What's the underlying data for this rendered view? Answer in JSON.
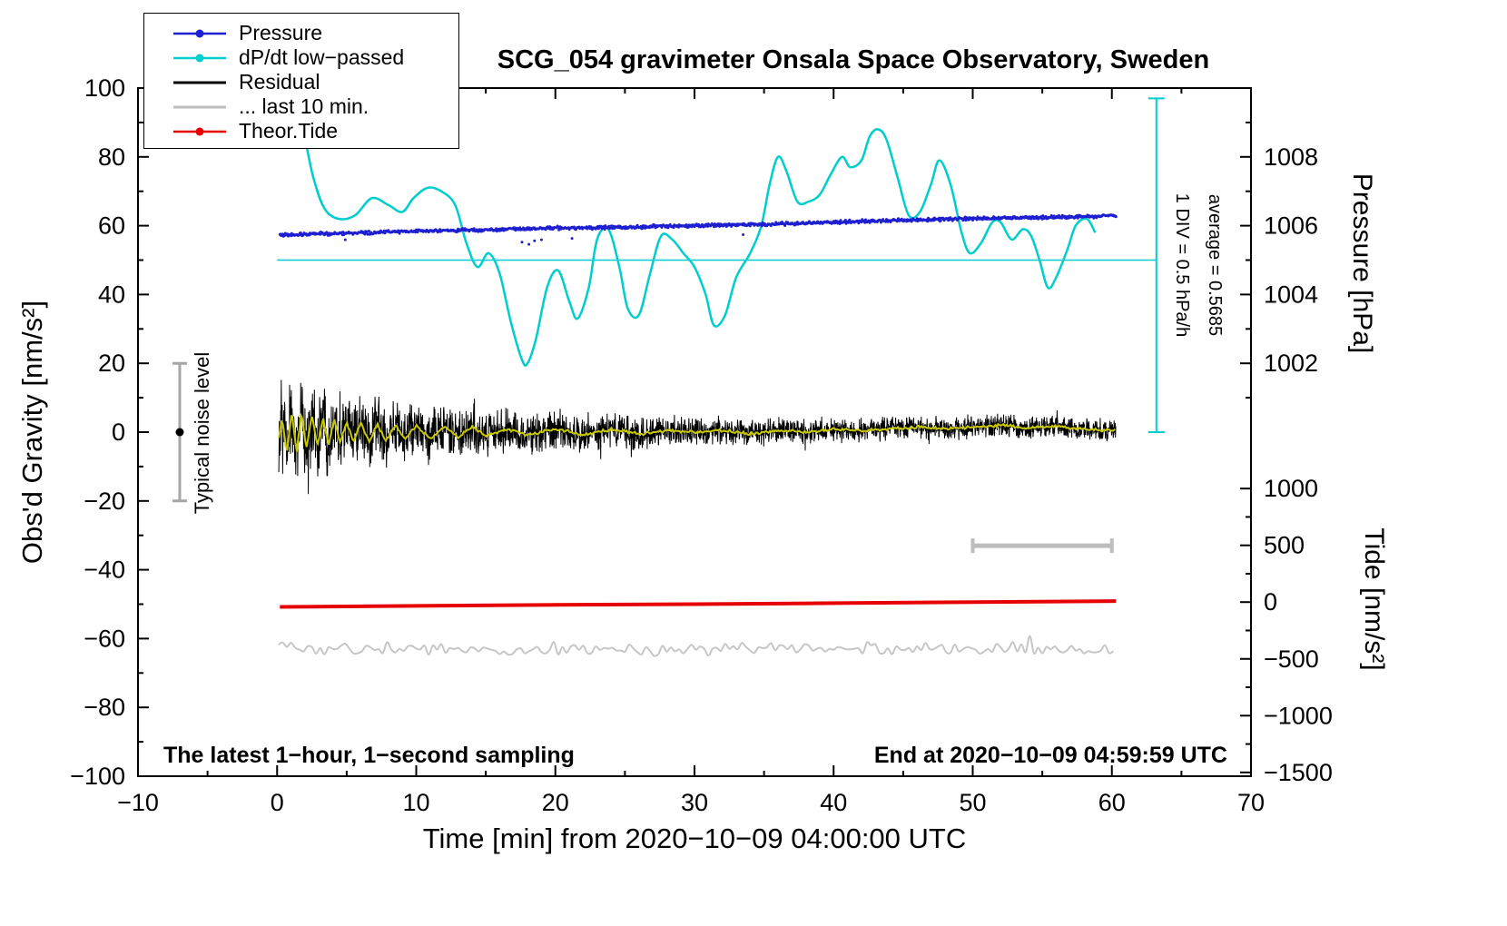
{
  "chart_data": {
    "type": "line",
    "title": "SCG_054 gravimeter Onsala Space Observatory, Sweden",
    "xlabel": "Time [min] from 2020−10−09 04:00:00 UTC",
    "ylabel_left": "Obs'd Gravity [nm/s²]",
    "ylabel_right_pressure": "Pressure [hPa]",
    "ylabel_right_tide": "Tide [nm/s²]",
    "xlim": [
      -10,
      70
    ],
    "ylim_left": [
      -100,
      100
    ],
    "grid": false,
    "legend_position": "top-left",
    "x_major": [
      -10,
      0,
      10,
      20,
      30,
      40,
      50,
      60,
      70
    ],
    "x_major_labels": [
      "−10",
      "0",
      "10",
      "20",
      "30",
      "40",
      "50",
      "60",
      "70"
    ],
    "x_minor": [
      -5,
      5,
      15,
      25,
      35,
      45,
      55,
      65
    ],
    "y_major": [
      -100,
      -80,
      -60,
      -40,
      -20,
      0,
      20,
      40,
      60,
      80,
      100
    ],
    "y_major_labels": [
      "−100",
      "−80",
      "−60",
      "−40",
      "−20",
      "0",
      "20",
      "40",
      "60",
      "80",
      "100"
    ],
    "y_minor": [
      -90,
      -70,
      -50,
      -30,
      -10,
      10,
      30,
      50,
      70,
      90
    ],
    "pressure_axis": {
      "g_at_1006": 60,
      "g_per_hpa": 10,
      "major": [
        1002,
        1004,
        1006,
        1008
      ],
      "major_labels": [
        "1002",
        "1004",
        "1006",
        "1008"
      ],
      "minor": [
        1001,
        1003,
        1005,
        1007,
        1009
      ]
    },
    "tide_axis": {
      "g_at_0": -49.4,
      "g_per_unit": 0.033,
      "major": [
        -1500,
        -1000,
        -500,
        0,
        500,
        1000
      ],
      "major_labels": [
        "−1500",
        "−1000",
        "−500",
        "0",
        "500",
        "1000"
      ],
      "minor": [
        -1250,
        -750,
        -250,
        250,
        750
      ]
    },
    "legend": [
      {
        "label": "Pressure",
        "color": "#1f1fd2",
        "marker": true
      },
      {
        "label": "dP/dt low−passed",
        "color": "#00cdcd",
        "marker": true
      },
      {
        "label": "Residual",
        "color": "#000000",
        "marker": false
      },
      {
        "label": "... last 10 min.",
        "color": "#bdbdbd",
        "marker": false
      },
      {
        "label": "Theor.Tide",
        "color": "#e60000",
        "marker": true
      }
    ],
    "annotations": {
      "noise_bar": {
        "x": -7,
        "g0": -20,
        "g1": 20,
        "dot_g": 0,
        "label": "Typical noise level",
        "color": "#a6a6a6"
      },
      "avg_line": {
        "g": 50,
        "x0": 0,
        "x1": 63.2,
        "color": "#00cdcd"
      },
      "div_bar": {
        "x": 63.2,
        "g0": 0,
        "g1": 97,
        "color": "#00cdcd",
        "label_div": "1 DIV = 0.5 hPa/h",
        "label_avg": "average = 0.5685"
      },
      "window_bar": {
        "g": -33,
        "x0": 50,
        "x1": 60,
        "color": "#bdbdbd"
      },
      "footer_left": "The latest 1−hour, 1−second sampling",
      "footer_right": "End at 2020−10−09 04:59:59 UTC"
    },
    "series": {
      "pressure": {
        "color": "#1f1fd2",
        "x0": 0.2,
        "x1": 60.3,
        "dt": 0.05,
        "scatter": 0.6,
        "mean": [
          [
            0,
            57.3
          ],
          [
            5,
            57.8
          ],
          [
            10,
            58.4
          ],
          [
            15,
            58.8
          ],
          [
            20,
            59.3
          ],
          [
            25,
            59.6
          ],
          [
            30,
            60.0
          ],
          [
            35,
            60.4
          ],
          [
            40,
            61.0
          ],
          [
            45,
            61.6
          ],
          [
            50,
            62.1
          ],
          [
            55,
            62.4
          ],
          [
            60.3,
            62.8
          ]
        ],
        "outliers": [
          [
            4.9,
            55.9
          ],
          [
            17.6,
            55.2
          ],
          [
            18.1,
            54.6
          ],
          [
            18.5,
            55.6
          ],
          [
            19.0,
            55.9
          ],
          [
            21.2,
            56.3
          ],
          [
            33.5,
            57.4
          ]
        ]
      },
      "dpdt": {
        "color": "#00cdcd",
        "points": [
          [
            1.2,
            86
          ],
          [
            1.8,
            88
          ],
          [
            2.6,
            74
          ],
          [
            3.4,
            65
          ],
          [
            4.4,
            62
          ],
          [
            5.6,
            63
          ],
          [
            6.8,
            68
          ],
          [
            8.0,
            66
          ],
          [
            9.0,
            64
          ],
          [
            9.8,
            68
          ],
          [
            10.8,
            71
          ],
          [
            11.8,
            70
          ],
          [
            12.8,
            66
          ],
          [
            13.6,
            55
          ],
          [
            14.4,
            48
          ],
          [
            15.2,
            52
          ],
          [
            16.0,
            46
          ],
          [
            16.8,
            32
          ],
          [
            17.6,
            21
          ],
          [
            18.0,
            20
          ],
          [
            18.6,
            27
          ],
          [
            19.4,
            42
          ],
          [
            20.2,
            47
          ],
          [
            21.0,
            38
          ],
          [
            21.6,
            33
          ],
          [
            22.4,
            42
          ],
          [
            23.0,
            56
          ],
          [
            23.8,
            59
          ],
          [
            24.6,
            48
          ],
          [
            25.2,
            36
          ],
          [
            26.0,
            34
          ],
          [
            26.8,
            46
          ],
          [
            27.6,
            57
          ],
          [
            28.4,
            56
          ],
          [
            29.2,
            52
          ],
          [
            30.0,
            48
          ],
          [
            30.8,
            40
          ],
          [
            31.4,
            31
          ],
          [
            32.2,
            34
          ],
          [
            33.0,
            45
          ],
          [
            34.0,
            52
          ],
          [
            34.8,
            60
          ],
          [
            35.4,
            72
          ],
          [
            36.0,
            80
          ],
          [
            36.6,
            76
          ],
          [
            37.4,
            67
          ],
          [
            38.2,
            67
          ],
          [
            39.0,
            69
          ],
          [
            39.8,
            75
          ],
          [
            40.6,
            80
          ],
          [
            41.2,
            77
          ],
          [
            42.0,
            79
          ],
          [
            42.6,
            86
          ],
          [
            43.2,
            88
          ],
          [
            43.8,
            85
          ],
          [
            44.6,
            74
          ],
          [
            45.4,
            63
          ],
          [
            46.2,
            64
          ],
          [
            47.0,
            72
          ],
          [
            47.6,
            79
          ],
          [
            48.4,
            72
          ],
          [
            49.2,
            58
          ],
          [
            49.8,
            52
          ],
          [
            50.6,
            55
          ],
          [
            51.4,
            61
          ],
          [
            52.0,
            61
          ],
          [
            52.8,
            56
          ],
          [
            53.6,
            59
          ],
          [
            54.2,
            57
          ],
          [
            54.8,
            50
          ],
          [
            55.4,
            42
          ],
          [
            56.0,
            45
          ],
          [
            56.8,
            53
          ],
          [
            57.4,
            60
          ],
          [
            58.2,
            62
          ],
          [
            58.8,
            58
          ]
        ]
      },
      "residual": {
        "color": "#000000",
        "x0": 0.12,
        "x1": 60.3,
        "dt": 0.02,
        "envelope_base": 3.6,
        "envelope_amp": 12.5,
        "envelope_tau": 14
      },
      "residual_smooth": {
        "color": "#c8c800",
        "points": [
          [
            0,
            -5
          ],
          [
            0.35,
            4
          ],
          [
            0.7,
            -6
          ],
          [
            1.05,
            6
          ],
          [
            1.4,
            -6
          ],
          [
            1.75,
            6
          ],
          [
            2.1,
            -5
          ],
          [
            2.5,
            5
          ],
          [
            2.9,
            -4
          ],
          [
            3.3,
            4
          ],
          [
            3.7,
            -4
          ],
          [
            4.1,
            4
          ],
          [
            4.5,
            -3
          ],
          [
            5.0,
            3
          ],
          [
            5.5,
            -3
          ],
          [
            6.0,
            3
          ],
          [
            6.6,
            -3
          ],
          [
            7.2,
            2.5
          ],
          [
            7.8,
            -2.5
          ],
          [
            8.5,
            2
          ],
          [
            9.2,
            -2
          ],
          [
            10,
            2
          ],
          [
            11,
            -2
          ],
          [
            12,
            1.5
          ],
          [
            13,
            -1.5
          ],
          [
            14,
            1.5
          ],
          [
            15,
            -1
          ],
          [
            16.5,
            1
          ],
          [
            18,
            -1
          ],
          [
            20,
            1
          ],
          [
            22,
            -0.8
          ],
          [
            24,
            0.8
          ],
          [
            26,
            -0.5
          ],
          [
            28,
            0.5
          ],
          [
            30,
            0
          ],
          [
            32,
            0.5
          ],
          [
            34,
            -0.5
          ],
          [
            36,
            0.5
          ],
          [
            38,
            0
          ],
          [
            40,
            0.8
          ],
          [
            42,
            0.3
          ],
          [
            44,
            1
          ],
          [
            46,
            1.5
          ],
          [
            48,
            1
          ],
          [
            50,
            1.5
          ],
          [
            52,
            2
          ],
          [
            54,
            1.2
          ],
          [
            56,
            1.8
          ],
          [
            58,
            0.8
          ],
          [
            60.3,
            0.5
          ]
        ]
      },
      "last10": {
        "color": "#c6c6c6",
        "center": -63,
        "amplitude": 2.2,
        "x0": 0.1,
        "x1": 60.3,
        "dt": 0.3
      },
      "tide": {
        "color": "#e60000",
        "points": [
          [
            0.2,
            -50.8
          ],
          [
            10,
            -50.5
          ],
          [
            20,
            -50.2
          ],
          [
            30,
            -50.0
          ],
          [
            40,
            -49.7
          ],
          [
            50,
            -49.4
          ],
          [
            60.3,
            -49.1
          ]
        ]
      }
    }
  }
}
